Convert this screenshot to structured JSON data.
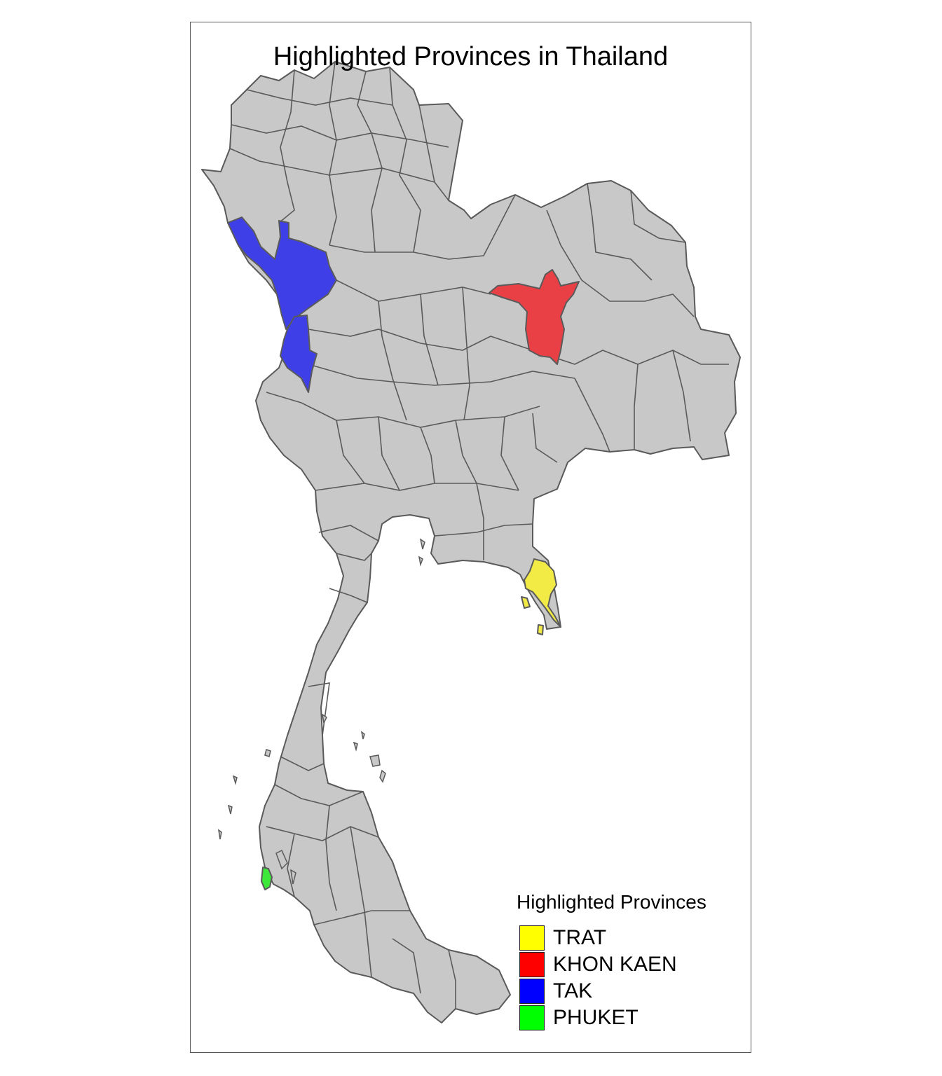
{
  "map": {
    "title": "Highlighted Provinces in Thailand",
    "country": "Thailand",
    "base_fill": "#c8c8c8",
    "border_color": "#5a5a5a",
    "highlighted": [
      {
        "name": "TRAT",
        "fill": "#f2ea45",
        "legend_color": "#ffff00"
      },
      {
        "name": "KHON KAEN",
        "fill": "#e84045",
        "legend_color": "#ff0000"
      },
      {
        "name": "TAK",
        "fill": "#3f3fe8",
        "legend_color": "#0000ff"
      },
      {
        "name": "PHUKET",
        "fill": "#3ee83a",
        "legend_color": "#00ff00"
      }
    ]
  },
  "legend": {
    "title": "Highlighted Provinces",
    "items": [
      {
        "label": "TRAT",
        "color": "#ffff00"
      },
      {
        "label": "KHON KAEN",
        "color": "#ff0000"
      },
      {
        "label": "TAK",
        "color": "#0000ff"
      },
      {
        "label": "PHUKET",
        "color": "#00ff00"
      }
    ]
  }
}
